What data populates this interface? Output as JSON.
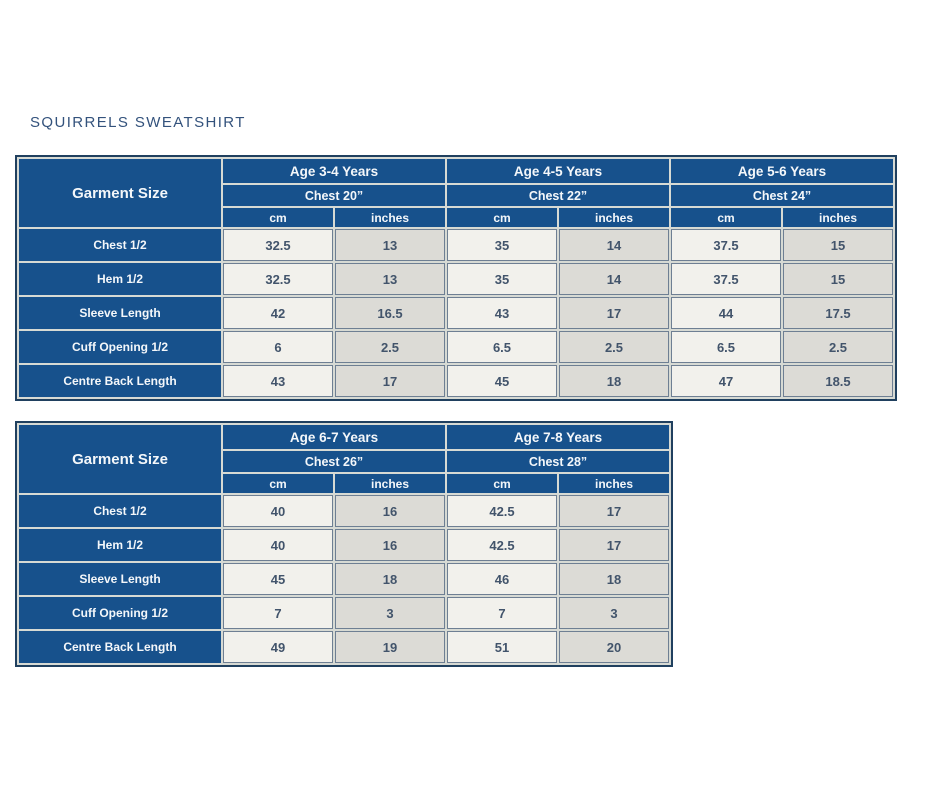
{
  "page_title": "SQUIRRELS SWEATSHIRT",
  "colors": {
    "header_blue": "#17518c",
    "cell_light": "#f2f1ec",
    "cell_shaded": "#dcdbd6",
    "title_text": "#33527c",
    "value_text": "#42546b",
    "outer_border": "#20405f"
  },
  "chart_data": [
    {
      "type": "table",
      "title": "SQUIRRELS SWEATSHIRT",
      "corner_label": "Garment Size",
      "age_groups": [
        {
          "label": "Age 3-4 Years",
          "chest": "Chest 20”"
        },
        {
          "label": "Age 4-5 Years",
          "chest": "Chest 22”"
        },
        {
          "label": "Age 5-6 Years",
          "chest": "Chest 24”"
        }
      ],
      "unit_headers": [
        "cm",
        "inches",
        "cm",
        "inches",
        "cm",
        "inches"
      ],
      "rows": [
        {
          "label": "Chest 1/2",
          "values": [
            "32.5",
            "13",
            "35",
            "14",
            "37.5",
            "15"
          ]
        },
        {
          "label": "Hem 1/2",
          "values": [
            "32.5",
            "13",
            "35",
            "14",
            "37.5",
            "15"
          ]
        },
        {
          "label": "Sleeve Length",
          "values": [
            "42",
            "16.5",
            "43",
            "17",
            "44",
            "17.5"
          ]
        },
        {
          "label": "Cuff Opening 1/2",
          "values": [
            "6",
            "2.5",
            "6.5",
            "2.5",
            "6.5",
            "2.5"
          ]
        },
        {
          "label": "Centre Back Length",
          "values": [
            "43",
            "17",
            "45",
            "18",
            "47",
            "18.5"
          ]
        }
      ]
    },
    {
      "type": "table",
      "title": "SQUIRRELS SWEATSHIRT",
      "corner_label": "Garment Size",
      "age_groups": [
        {
          "label": "Age 6-7 Years",
          "chest": "Chest 26”"
        },
        {
          "label": "Age 7-8 Years",
          "chest": "Chest 28”"
        }
      ],
      "unit_headers": [
        "cm",
        "inches",
        "cm",
        "inches"
      ],
      "rows": [
        {
          "label": "Chest 1/2",
          "values": [
            "40",
            "16",
            "42.5",
            "17"
          ]
        },
        {
          "label": "Hem 1/2",
          "values": [
            "40",
            "16",
            "42.5",
            "17"
          ]
        },
        {
          "label": "Sleeve Length",
          "values": [
            "45",
            "18",
            "46",
            "18"
          ]
        },
        {
          "label": "Cuff Opening 1/2",
          "values": [
            "7",
            "3",
            "7",
            "3"
          ]
        },
        {
          "label": "Centre Back Length",
          "values": [
            "49",
            "19",
            "51",
            "20"
          ]
        }
      ]
    }
  ]
}
